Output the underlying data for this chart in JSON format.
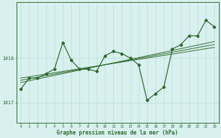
{
  "x": [
    0,
    1,
    2,
    3,
    4,
    5,
    6,
    7,
    8,
    9,
    10,
    11,
    12,
    13,
    14,
    15,
    16,
    17,
    18,
    19,
    20,
    21,
    22,
    23
  ],
  "y_main": [
    1017.3,
    1017.55,
    1017.55,
    1017.65,
    1017.75,
    1018.35,
    1017.95,
    1017.75,
    1017.75,
    1017.7,
    1018.05,
    1018.15,
    1018.1,
    1018.0,
    1017.85,
    1017.05,
    1017.2,
    1017.35,
    1018.2,
    1018.3,
    1018.5,
    1018.5,
    1018.85,
    1018.7
  ],
  "y_trend1": [
    1017.55,
    1017.58,
    1017.61,
    1017.64,
    1017.67,
    1017.7,
    1017.73,
    1017.76,
    1017.79,
    1017.82,
    1017.85,
    1017.88,
    1017.91,
    1017.94,
    1017.97,
    1018.0,
    1018.03,
    1018.06,
    1018.09,
    1018.12,
    1018.15,
    1018.18,
    1018.21,
    1018.24
  ],
  "y_trend2": [
    1017.5,
    1017.535,
    1017.57,
    1017.605,
    1017.64,
    1017.675,
    1017.71,
    1017.745,
    1017.78,
    1017.815,
    1017.85,
    1017.885,
    1017.92,
    1017.955,
    1017.99,
    1018.025,
    1018.06,
    1018.095,
    1018.13,
    1018.165,
    1018.2,
    1018.235,
    1018.27,
    1018.305
  ],
  "y_trend3": [
    1017.45,
    1017.49,
    1017.53,
    1017.57,
    1017.61,
    1017.65,
    1017.69,
    1017.73,
    1017.77,
    1017.81,
    1017.85,
    1017.89,
    1017.93,
    1017.97,
    1018.01,
    1018.05,
    1018.09,
    1018.13,
    1018.17,
    1018.21,
    1018.25,
    1018.29,
    1018.33,
    1018.37
  ],
  "line_color": "#2d6a2d",
  "bg_color": "#d8f0ee",
  "grid_color": "#b8dcd8",
  "xlabel_label": "Graphe pression niveau de la mer (hPa)",
  "yticks": [
    1017,
    1018
  ],
  "ylim": [
    1016.55,
    1019.25
  ],
  "xlim": [
    -0.5,
    23.5
  ],
  "figwidth": 3.2,
  "figheight": 2.0,
  "dpi": 100
}
